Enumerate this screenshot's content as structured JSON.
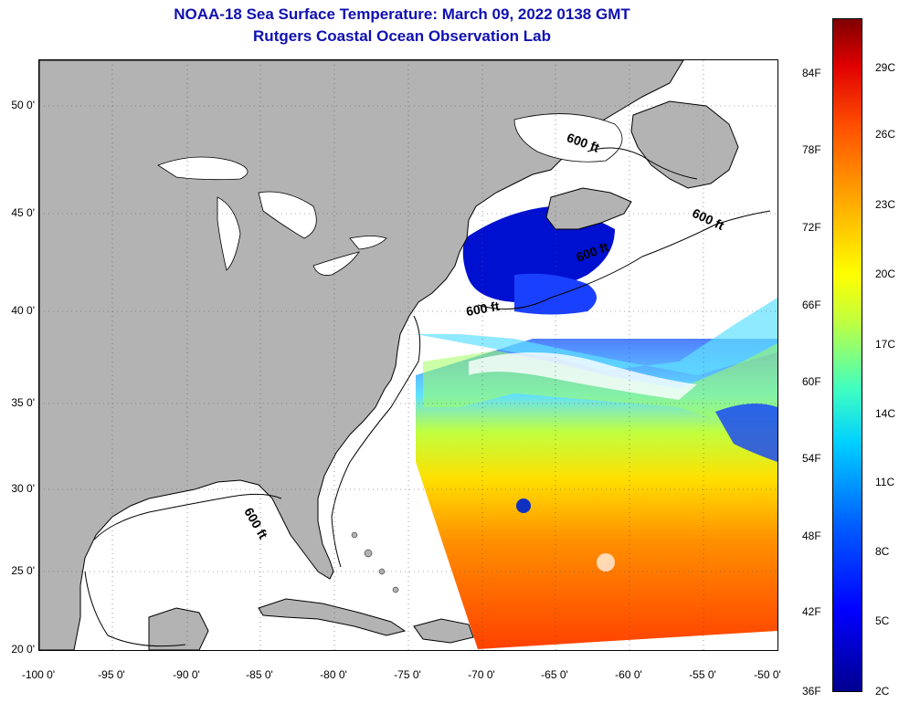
{
  "title": {
    "line1": "NOAA-18 Sea Surface Temperature:  March 09, 2022 0138 GMT",
    "line2": "Rutgers Coastal Ocean Observation Lab"
  },
  "map": {
    "lat_labels": [
      "50 0'",
      "45 0'",
      "40 0'",
      "35 0'",
      "30 0'",
      "25 0'",
      "20 0'"
    ],
    "lon_labels": [
      "-100 0'",
      "-95 0'",
      "-90 0'",
      "-85 0'",
      "-80 0'",
      "-75 0'",
      "-70 0'",
      "-65 0'",
      "-60 0'",
      "-55 0'",
      "-50 0'"
    ],
    "contour_labels": [
      "600 ft",
      "600 ft",
      "600 ft",
      "600 ft",
      "600 ft"
    ],
    "land_color": "#b3b3b3",
    "ocean_color": "#ffffff"
  },
  "colorbar": {
    "fahrenheit": [
      "84F",
      "78F",
      "72F",
      "66F",
      "60F",
      "54F",
      "48F",
      "42F",
      "36F"
    ],
    "celsius": [
      "29C",
      "26C",
      "23C",
      "20C",
      "17C",
      "14C",
      "11C",
      "8C",
      "5C",
      "2C"
    ]
  }
}
